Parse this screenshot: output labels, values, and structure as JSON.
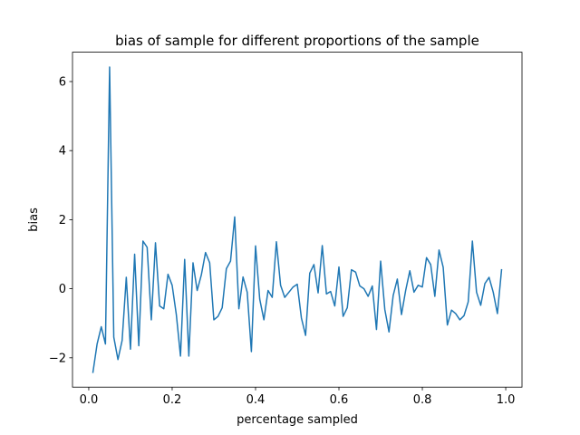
{
  "chart_data": {
    "type": "line",
    "title": "bias of sample for different proportions of the sample",
    "xlabel": "percentage  sampled",
    "ylabel": "bias",
    "xlim": [
      -0.039,
      1.039
    ],
    "ylim": [
      -2.85,
      6.85
    ],
    "xticks": [
      0.0,
      0.2,
      0.4,
      0.6,
      0.8,
      1.0
    ],
    "xtick_labels": [
      "0.0",
      "0.2",
      "0.4",
      "0.6",
      "0.8",
      "1.0"
    ],
    "yticks": [
      -2,
      0,
      2,
      4,
      6
    ],
    "ytick_labels": [
      "−2",
      "0",
      "2",
      "4",
      "6"
    ],
    "grid": false,
    "series": [
      {
        "color": "#1f77b4",
        "x": [
          0.01,
          0.02,
          0.03,
          0.04,
          0.05,
          0.06,
          0.07,
          0.08,
          0.09,
          0.1,
          0.11,
          0.12,
          0.13,
          0.14,
          0.15,
          0.16,
          0.17,
          0.18,
          0.19,
          0.2,
          0.21,
          0.22,
          0.23,
          0.24,
          0.25,
          0.26,
          0.27,
          0.28,
          0.29,
          0.3,
          0.31,
          0.32,
          0.33,
          0.34,
          0.35,
          0.36,
          0.37,
          0.38,
          0.39,
          0.4,
          0.41,
          0.42,
          0.43,
          0.44,
          0.45,
          0.46,
          0.47,
          0.48,
          0.49,
          0.5,
          0.51,
          0.52,
          0.53,
          0.54,
          0.55,
          0.56,
          0.57,
          0.58,
          0.59,
          0.6,
          0.61,
          0.62,
          0.63,
          0.64,
          0.65,
          0.66,
          0.67,
          0.68,
          0.69,
          0.7,
          0.71,
          0.72,
          0.73,
          0.74,
          0.75,
          0.76,
          0.77,
          0.78,
          0.79,
          0.8,
          0.81,
          0.82,
          0.83,
          0.84,
          0.85,
          0.86,
          0.87,
          0.88,
          0.89,
          0.9,
          0.91,
          0.92,
          0.93,
          0.94,
          0.95,
          0.96,
          0.97,
          0.98,
          0.99
        ],
        "values": [
          -2.42,
          -1.6,
          -1.1,
          -1.6,
          6.42,
          -1.4,
          -2.05,
          -1.5,
          0.33,
          -1.75,
          1.0,
          -1.65,
          1.38,
          1.2,
          -0.9,
          1.33,
          -0.5,
          -0.58,
          0.42,
          0.1,
          -0.75,
          -1.95,
          0.85,
          -1.95,
          0.75,
          -0.05,
          0.4,
          1.05,
          0.75,
          -0.9,
          -0.8,
          -0.55,
          0.58,
          0.8,
          2.08,
          -0.58,
          0.34,
          -0.1,
          -1.82,
          1.24,
          -0.3,
          -0.9,
          -0.05,
          -0.25,
          1.36,
          0.1,
          -0.25,
          -0.1,
          0.05,
          0.13,
          -0.85,
          -1.35,
          0.45,
          0.7,
          -0.12,
          1.25,
          -0.15,
          -0.08,
          -0.5,
          0.63,
          -0.8,
          -0.55,
          0.55,
          0.48,
          0.08,
          0.0,
          -0.22,
          0.08,
          -1.18,
          0.8,
          -0.6,
          -1.25,
          -0.2,
          0.28,
          -0.75,
          -0.05,
          0.52,
          -0.1,
          0.1,
          0.05,
          0.9,
          0.7,
          -0.22,
          1.12,
          0.62,
          -1.05,
          -0.62,
          -0.72,
          -0.9,
          -0.78,
          -0.38,
          1.38,
          -0.1,
          -0.48,
          0.15,
          0.33,
          -0.1,
          -0.72,
          0.55
        ]
      }
    ]
  }
}
